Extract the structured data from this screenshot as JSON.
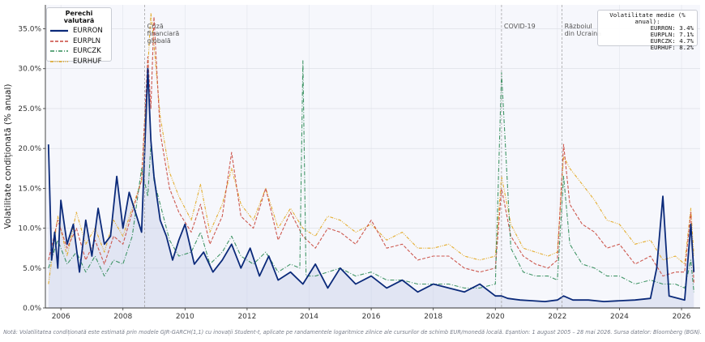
{
  "chart_data": {
    "type": "line",
    "ylabel": "Volatilitate condiționată (% anual)",
    "ylim": [
      0,
      38
    ],
    "yticks": [
      0,
      5,
      10,
      15,
      20,
      25,
      30,
      35
    ],
    "ytick_labels": [
      "0.0%",
      "5.0%",
      "10.0%",
      "15.0%",
      "20.0%",
      "25.0%",
      "30.0%",
      "35.0%"
    ],
    "xlim": [
      2005.5,
      2026.6
    ],
    "xticks": [
      2006,
      2008,
      2010,
      2012,
      2014,
      2016,
      2018,
      2020,
      2022,
      2024,
      2026
    ],
    "xtick_labels": [
      "2006",
      "2008",
      "2010",
      "2012",
      "2014",
      "2016",
      "2018",
      "2020",
      "2022",
      "2024",
      "2026"
    ],
    "grid": true,
    "legend_title": "Perechi valutară",
    "legend_placement": "top-left",
    "series": [
      {
        "name": "EURRON",
        "color": "#0b2a7a",
        "style": "solid",
        "x": [
          2005.6,
          2005.7,
          2005.8,
          2005.9,
          2006.0,
          2006.2,
          2006.4,
          2006.6,
          2006.8,
          2007.0,
          2007.2,
          2007.4,
          2007.6,
          2007.8,
          2008.0,
          2008.2,
          2008.4,
          2008.6,
          2008.8,
          2008.9,
          2009.0,
          2009.2,
          2009.4,
          2009.6,
          2009.8,
          2010.0,
          2010.3,
          2010.6,
          2010.9,
          2011.2,
          2011.5,
          2011.8,
          2012.1,
          2012.4,
          2012.7,
          2013.0,
          2013.4,
          2013.8,
          2014.2,
          2014.6,
          2015.0,
          2015.5,
          2016.0,
          2016.5,
          2017.0,
          2017.5,
          2018.0,
          2018.5,
          2019.0,
          2019.5,
          2020.0,
          2020.2,
          2020.4,
          2020.8,
          2021.2,
          2021.6,
          2022.0,
          2022.2,
          2022.5,
          2023.0,
          2023.5,
          2024.0,
          2024.5,
          2025.0,
          2025.2,
          2025.4,
          2025.6,
          2025.9,
          2026.1,
          2026.3,
          2026.4
        ],
        "values": [
          20.5,
          6.0,
          9.5,
          5.0,
          13.5,
          8.0,
          10.5,
          4.5,
          11.0,
          6.5,
          12.5,
          8.0,
          9.0,
          16.5,
          10.0,
          14.5,
          12.0,
          9.5,
          30.0,
          21.0,
          16.5,
          11.0,
          9.0,
          6.0,
          8.5,
          10.5,
          5.5,
          7.0,
          4.5,
          6.0,
          8.0,
          5.0,
          7.5,
          4.0,
          6.5,
          3.5,
          4.5,
          3.0,
          5.5,
          2.5,
          5.0,
          3.0,
          4.0,
          2.5,
          3.5,
          2.0,
          3.0,
          2.5,
          2.0,
          3.0,
          1.5,
          1.5,
          1.2,
          1.0,
          0.9,
          0.8,
          1.0,
          1.5,
          1.0,
          1.0,
          0.8,
          0.9,
          1.0,
          1.2,
          5.0,
          14.0,
          1.5,
          1.2,
          1.0,
          10.5,
          4.5
        ]
      },
      {
        "name": "EURPLN",
        "color": "#c9473c",
        "style": "dashed",
        "x": [
          2005.6,
          2005.9,
          2006.2,
          2006.5,
          2006.8,
          2007.1,
          2007.4,
          2007.7,
          2008.0,
          2008.3,
          2008.6,
          2008.8,
          2008.9,
          2009.0,
          2009.2,
          2009.5,
          2009.8,
          2010.2,
          2010.5,
          2010.8,
          2011.2,
          2011.5,
          2011.8,
          2012.2,
          2012.6,
          2013.0,
          2013.4,
          2013.8,
          2014.2,
          2014.6,
          2015.0,
          2015.5,
          2016.0,
          2016.5,
          2017.0,
          2017.5,
          2018.0,
          2018.5,
          2019.0,
          2019.5,
          2020.0,
          2020.2,
          2020.5,
          2020.9,
          2021.3,
          2021.7,
          2022.0,
          2022.2,
          2022.4,
          2022.8,
          2023.2,
          2023.6,
          2024.0,
          2024.5,
          2025.0,
          2025.4,
          2025.8,
          2026.1,
          2026.3,
          2026.4
        ],
        "values": [
          6.0,
          11.0,
          7.5,
          10.0,
          6.0,
          8.5,
          5.5,
          9.0,
          8.0,
          12.0,
          16.0,
          31.5,
          25.0,
          36.5,
          22.0,
          15.0,
          12.0,
          9.5,
          13.0,
          8.0,
          11.5,
          19.5,
          11.5,
          10.0,
          15.0,
          8.5,
          12.0,
          9.0,
          7.5,
          10.0,
          9.5,
          8.0,
          11.0,
          7.5,
          8.0,
          6.0,
          6.5,
          6.5,
          5.0,
          4.5,
          5.0,
          15.0,
          9.0,
          6.5,
          5.5,
          5.0,
          6.0,
          20.5,
          13.0,
          10.5,
          9.5,
          7.5,
          8.0,
          5.5,
          6.5,
          4.0,
          4.5,
          4.5,
          12.0,
          3.0
        ]
      },
      {
        "name": "EURCZK",
        "color": "#2e8b57",
        "style": "dashdot",
        "x": [
          2005.6,
          2005.9,
          2006.2,
          2006.5,
          2006.8,
          2007.1,
          2007.4,
          2007.7,
          2008.0,
          2008.3,
          2008.6,
          2008.8,
          2008.9,
          2009.0,
          2009.2,
          2009.5,
          2009.8,
          2010.2,
          2010.5,
          2010.8,
          2011.2,
          2011.5,
          2011.8,
          2012.2,
          2012.6,
          2013.0,
          2013.4,
          2013.7,
          2013.8,
          2013.9,
          2014.2,
          2014.6,
          2015.0,
          2015.5,
          2016.0,
          2016.5,
          2017.0,
          2017.5,
          2018.0,
          2018.5,
          2019.0,
          2019.5,
          2020.0,
          2020.2,
          2020.5,
          2020.9,
          2021.3,
          2021.7,
          2022.0,
          2022.2,
          2022.4,
          2022.8,
          2023.2,
          2023.6,
          2024.0,
          2024.5,
          2025.0,
          2025.4,
          2025.8,
          2026.1,
          2026.3,
          2026.4
        ],
        "values": [
          5.0,
          8.5,
          5.5,
          7.0,
          4.5,
          6.5,
          4.0,
          6.0,
          5.5,
          9.0,
          17.5,
          14.0,
          20.5,
          16.0,
          13.0,
          8.5,
          6.5,
          7.0,
          9.5,
          5.5,
          7.0,
          9.0,
          6.5,
          5.5,
          7.0,
          4.5,
          5.5,
          5.0,
          31.0,
          4.0,
          4.0,
          4.5,
          5.0,
          4.0,
          4.5,
          3.5,
          3.5,
          3.0,
          3.0,
          3.0,
          2.5,
          2.5,
          3.0,
          29.5,
          7.5,
          4.5,
          4.0,
          4.0,
          3.5,
          16.5,
          8.0,
          5.5,
          5.0,
          4.0,
          4.0,
          3.0,
          3.5,
          3.0,
          3.0,
          2.5,
          6.0,
          2.0
        ]
      },
      {
        "name": "EURHUF",
        "color": "#e2a519",
        "style": "dashdotdot",
        "x": [
          2005.6,
          2005.9,
          2006.2,
          2006.5,
          2006.8,
          2007.1,
          2007.4,
          2007.7,
          2008.0,
          2008.3,
          2008.6,
          2008.8,
          2008.9,
          2009.0,
          2009.2,
          2009.5,
          2009.8,
          2010.2,
          2010.5,
          2010.8,
          2011.2,
          2011.5,
          2011.8,
          2012.2,
          2012.6,
          2013.0,
          2013.4,
          2013.8,
          2014.2,
          2014.6,
          2015.0,
          2015.5,
          2016.0,
          2016.5,
          2017.0,
          2017.5,
          2018.0,
          2018.5,
          2019.0,
          2019.5,
          2020.0,
          2020.2,
          2020.5,
          2020.9,
          2021.3,
          2021.7,
          2022.0,
          2022.2,
          2022.4,
          2022.8,
          2023.2,
          2023.6,
          2024.0,
          2024.5,
          2025.0,
          2025.4,
          2025.8,
          2026.1,
          2026.3,
          2026.4
        ],
        "values": [
          3.0,
          11.5,
          6.5,
          12.0,
          8.0,
          10.0,
          7.0,
          11.0,
          9.0,
          12.5,
          16.0,
          30.0,
          37.0,
          33.0,
          24.0,
          17.0,
          14.0,
          11.0,
          15.5,
          9.5,
          13.0,
          17.5,
          13.0,
          11.0,
          15.0,
          10.0,
          12.5,
          10.0,
          9.0,
          11.5,
          11.0,
          9.5,
          10.5,
          8.5,
          9.5,
          7.5,
          7.5,
          8.0,
          6.5,
          6.0,
          6.5,
          16.5,
          10.5,
          7.5,
          7.0,
          6.5,
          7.0,
          19.0,
          17.5,
          15.5,
          13.5,
          11.0,
          10.5,
          8.0,
          8.5,
          6.0,
          6.5,
          5.5,
          12.5,
          6.5
        ]
      }
    ],
    "annotations": [
      {
        "x": 2008.7,
        "lines": [
          "Criză",
          "financiară",
          "globală"
        ]
      },
      {
        "x": 2020.2,
        "lines": [
          "COVID-19"
        ]
      },
      {
        "x": 2022.15,
        "lines": [
          "Războiul",
          "din Ucraina"
        ]
      }
    ],
    "volatility_box": {
      "title": "Volatilitate medie (% anual):",
      "lines": [
        "EURRON: 3.4%",
        "EURPLN: 7.1%",
        "EURCZK: 4.7%",
        "EURHUF: 8.2%"
      ]
    },
    "footnote": "Notă: Volatilitatea condiționată este estimată prin modele GJR-GARCH(1,1) cu inovații Student-t, aplicate pe randamentele logaritmice zilnice ale cursurilor de schimb EUR/monedă locală. Eșantion: 1 august 2005 – 28 mai 2026.  Sursa datelor: Bloomberg (BGN)."
  }
}
